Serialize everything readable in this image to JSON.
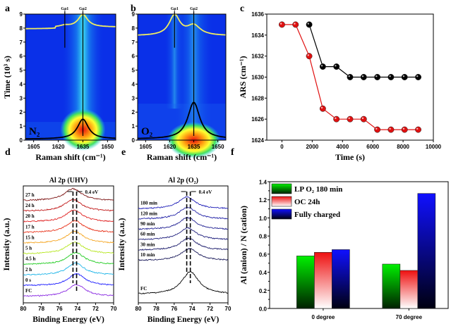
{
  "chart_data": [
    {
      "panel": "a",
      "type": "heatmap",
      "xlabel": "Raman shift (cm⁻¹)",
      "ylabel": "Time (10³ s)",
      "xticks": [
        1605,
        1620,
        1635,
        1650
      ],
      "yticks": [
        0,
        1,
        2,
        3,
        4,
        5,
        6,
        7,
        8,
        9
      ],
      "xlim": [
        1600,
        1655
      ],
      "ylim": [
        0,
        9
      ],
      "peak_labels": [
        "Gρ1",
        "Gρ2"
      ],
      "peak_positions": [
        1624,
        1635
      ],
      "peak_center": 1635,
      "intense_region_time": [
        0,
        1.5
      ],
      "annotation": "N₂",
      "overlay_curves": [
        "yellow spectrum at top (peak at 1635)",
        "black Lorentzian at bottom (peak height ≈1.5)"
      ]
    },
    {
      "panel": "b",
      "type": "heatmap",
      "xlabel": "Raman shift (cm⁻¹)",
      "ylabel": "",
      "xticks": [
        1605,
        1620,
        1635,
        1650
      ],
      "yticks": [
        0,
        1,
        2,
        3,
        4,
        5,
        6,
        7,
        8,
        9
      ],
      "xlim": [
        1600,
        1655
      ],
      "ylim": [
        0,
        9
      ],
      "peak_labels": [
        "Gρ1",
        "Gρ2"
      ],
      "peak_positions": [
        1623,
        1635
      ],
      "peak_center": 1635,
      "intense_region_time": [
        0,
        0.4
      ],
      "annotation": "O₂",
      "overlay_curves": [
        "yellow spectrum at top (peak at 1623)",
        "black Lorentzian at bottom (peak height ≈2.7)"
      ]
    },
    {
      "panel": "c",
      "type": "line",
      "xlabel": "Time (s)",
      "ylabel": "ARS (cm⁻¹)",
      "xlim": [
        -1000,
        10000
      ],
      "ylim": [
        1624,
        1636
      ],
      "xticks": [
        0,
        2000,
        4000,
        6000,
        8000,
        10000
      ],
      "yticks": [
        1624,
        1626,
        1628,
        1630,
        1632,
        1634,
        1636
      ],
      "series": [
        {
          "name": "N₂",
          "color": "#000000",
          "x": [
            1800,
            2700,
            3600,
            4500,
            5400,
            6300,
            7200,
            8100,
            9000
          ],
          "y": [
            1635,
            1631,
            1631,
            1630,
            1630,
            1630,
            1630,
            1630,
            1630
          ]
        },
        {
          "name": "O₂",
          "color": "#e01010",
          "x": [
            0,
            900,
            1800,
            2700,
            3600,
            4500,
            5400,
            6300,
            7200,
            8100,
            9000
          ],
          "y": [
            1635,
            1635,
            1632,
            1627,
            1626,
            1626,
            1626,
            1625,
            1625,
            1625,
            1625
          ]
        }
      ]
    },
    {
      "panel": "d",
      "type": "line",
      "title": "Al 2p (UHV)",
      "xlabel": "Binding Energy (eV)",
      "ylabel": "Intensity (a.u.)",
      "xlim": [
        80,
        70
      ],
      "xticks": [
        80,
        78,
        76,
        74,
        72,
        70
      ],
      "annotation": "0.4 eV",
      "dashed_lines": [
        74.5,
        74.1
      ],
      "series": [
        {
          "name": "FC",
          "color": "#8a2be2",
          "peak": 74.1
        },
        {
          "name": "0 s",
          "color": "#1a1aff",
          "peak": 74.1
        },
        {
          "name": "2 h",
          "color": "#1fb5e8",
          "peak": 74.2
        },
        {
          "name": "4.5 h",
          "color": "#22cc22",
          "peak": 74.2
        },
        {
          "name": "5 h",
          "color": "#b5e61d",
          "peak": 74.3
        },
        {
          "name": "15 h",
          "color": "#f5a623",
          "peak": 74.3
        },
        {
          "name": "17 h",
          "color": "#e8341c",
          "peak": 74.3
        },
        {
          "name": "20 h",
          "color": "#e02020",
          "peak": 74.4
        },
        {
          "name": "24 h",
          "color": "#c01818",
          "peak": 74.5
        },
        {
          "name": "27 h",
          "color": "#7a1010",
          "peak": 74.5
        }
      ]
    },
    {
      "panel": "e",
      "type": "line",
      "title": "Al 2p (O₂)",
      "xlabel": "Binding Energy (eV)",
      "ylabel": "Intensity (a.u.)",
      "xlim": [
        80,
        70
      ],
      "xticks": [
        80,
        78,
        76,
        74,
        72,
        70
      ],
      "annotation": "0.4 eV",
      "dashed_lines": [
        74.6,
        74.2
      ],
      "series": [
        {
          "name": "FC",
          "color": "#000000",
          "peak": 74.2
        },
        {
          "name": "10 min",
          "color": "#1a1a5a",
          "peak": 74.3
        },
        {
          "name": "30 min",
          "color": "#1a1a6a",
          "peak": 74.4
        },
        {
          "name": "60 min",
          "color": "#1a1a7a",
          "peak": 74.5
        },
        {
          "name": "90 min",
          "color": "#1c1c90",
          "peak": 74.5
        },
        {
          "name": "120 min",
          "color": "#1e1ea5",
          "peak": 74.5
        },
        {
          "name": "180 min",
          "color": "#2020b8",
          "peak": 74.6
        }
      ]
    },
    {
      "panel": "f",
      "type": "bar",
      "xlabel": "",
      "ylabel": "Al (anion) / N (cation)",
      "ylim": [
        0,
        1.4
      ],
      "yticks": [
        0.0,
        0.2,
        0.4,
        0.6,
        0.8,
        1.0,
        1.2,
        1.4
      ],
      "categories": [
        "0 degree",
        "70 degree"
      ],
      "legend_position": "top-left",
      "series": [
        {
          "name": "LP O₂ 180 min",
          "color": "#00dd00",
          "values": [
            0.58,
            0.49
          ]
        },
        {
          "name": "OC 24h",
          "color": "#ee2020",
          "values": [
            0.62,
            0.42
          ]
        },
        {
          "name": "Fully charged",
          "color": "#1010ee",
          "values": [
            0.65,
            1.27
          ]
        }
      ]
    }
  ],
  "panel_letters": [
    "a",
    "b",
    "c",
    "d",
    "e",
    "f"
  ]
}
